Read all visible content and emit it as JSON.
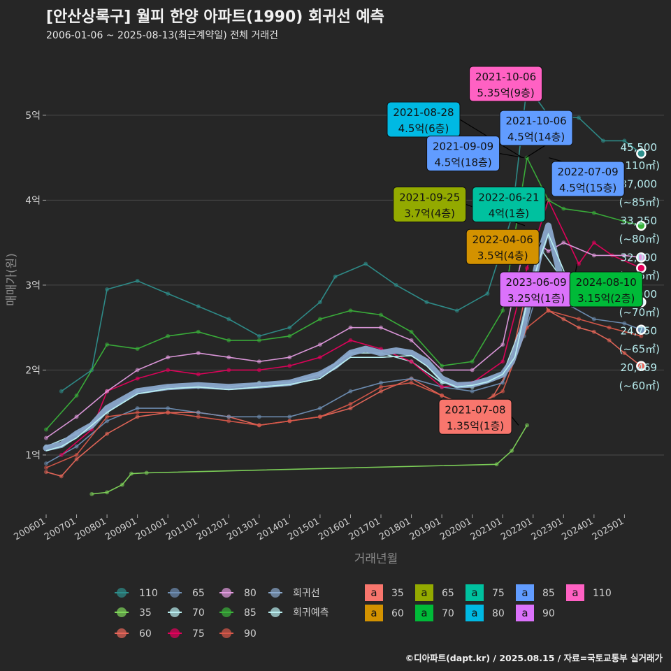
{
  "title": "[안산상록구] 월피 한양 아파트(1990) 회귀선 예측",
  "subtitle": "2006-01-06 ~ 2025-08-13(최근계약일) 전체 거래건",
  "caption": "©디아파트(dapt.kr) / 2025.08.15 / 자료=국토교통부 실거래가",
  "colors": {
    "background": "#262626",
    "grid": "#4a4a4a",
    "110": "#2e8f8c",
    "35": "#7fd65a",
    "60": "#e8675a",
    "65": "#6f8fb5",
    "70": "#b9eef0",
    "75": "#e6005c",
    "80": "#e39be0",
    "85": "#3ab23a",
    "90": "#d8584a",
    "regression": "#8aa8cc",
    "prediction": "#b9eef0"
  },
  "chart_data": {
    "type": "line",
    "xlabel": "거래년월",
    "ylabel": "매매가(원)",
    "x_ticks": [
      "200601",
      "200701",
      "200801",
      "200901",
      "201001",
      "201101",
      "201201",
      "201301",
      "201401",
      "201501",
      "201601",
      "201701",
      "201801",
      "201901",
      "202001",
      "202101",
      "202201",
      "202301",
      "202401",
      "202501"
    ],
    "y_ticks": [
      "1억",
      "2억",
      "3억",
      "4억",
      "5억"
    ],
    "y_tick_values": [
      10000,
      20000,
      30000,
      40000,
      50000
    ],
    "xlim": [
      2006.0,
      2026.3
    ],
    "ylim": [
      3000,
      56000
    ],
    "grid": true,
    "series": [
      {
        "name": "110",
        "x": [
          2006.5,
          2007.5,
          2008.0,
          2009.0,
          2010.0,
          2011.0,
          2012.0,
          2013.0,
          2014.0,
          2015.0,
          2015.5,
          2016.5,
          2017.5,
          2018.5,
          2019.5,
          2020.5,
          2021.3,
          2021.8,
          2022.5,
          2023.5,
          2024.3,
          2025.0,
          2025.55
        ],
        "values": [
          17500,
          20000,
          29500,
          30500,
          29000,
          27500,
          26000,
          24000,
          25000,
          28000,
          31000,
          32500,
          30000,
          28000,
          27000,
          29000,
          38000,
          53500,
          50000,
          49700,
          47000,
          47000,
          45500
        ]
      },
      {
        "name": "35",
        "x": [
          2007.5,
          2008.0,
          2008.5,
          2008.8,
          2009.3,
          2020.8,
          2021.3,
          2021.8
        ],
        "values": [
          5400,
          5600,
          6500,
          7800,
          7900,
          8900,
          10500,
          13500
        ]
      },
      {
        "name": "60",
        "x": [
          2006.0,
          2006.5,
          2007.0,
          2008.0,
          2009.0,
          2010.0,
          2011.0,
          2012.0,
          2013.0,
          2014.0,
          2015.0,
          2016.0,
          2017.0,
          2018.0,
          2019.0,
          2020.0,
          2020.7,
          2021.2,
          2021.7,
          2022.2,
          2022.5,
          2023.0,
          2023.5,
          2024.0,
          2024.5,
          2025.0,
          2025.55
        ],
        "values": [
          8000,
          7500,
          9500,
          12500,
          14500,
          15000,
          15000,
          14500,
          13500,
          14000,
          14500,
          15500,
          17500,
          19000,
          17000,
          15500,
          17000,
          20000,
          28000,
          29000,
          27000,
          26000,
          25000,
          24500,
          23500,
          22000,
          20469
        ]
      },
      {
        "name": "65",
        "x": [
          2006.0,
          2007.0,
          2008.0,
          2009.0,
          2010.0,
          2011.0,
          2012.0,
          2013.0,
          2014.0,
          2015.0,
          2016.0,
          2017.0,
          2018.0,
          2019.0,
          2020.0,
          2021.0,
          2021.7,
          2022.3,
          2023.0,
          2024.0,
          2025.0,
          2025.55
        ],
        "values": [
          9000,
          11000,
          14000,
          15500,
          15500,
          15000,
          14500,
          14500,
          14500,
          15500,
          17500,
          18500,
          19000,
          18000,
          17500,
          18500,
          24000,
          31000,
          28000,
          26000,
          25500,
          24750
        ]
      },
      {
        "name": "70",
        "x": [
          2006.0,
          2007.0,
          2008.0,
          2009.0,
          2010.0,
          2011.0,
          2012.0,
          2013.0,
          2014.0,
          2015.0,
          2016.0,
          2017.0,
          2018.0,
          2019.0,
          2020.0,
          2021.0,
          2021.7,
          2022.3,
          2023.0,
          2024.0,
          2025.0,
          2025.55
        ],
        "values": [
          11000,
          12500,
          15000,
          17500,
          18000,
          18000,
          18000,
          18500,
          18500,
          19500,
          22000,
          22000,
          21000,
          18500,
          18000,
          19500,
          26000,
          34000,
          30500,
          29000,
          28500,
          28000
        ]
      },
      {
        "name": "75",
        "x": [
          2006.5,
          2007.5,
          2008.0,
          2009.0,
          2010.0,
          2011.0,
          2012.0,
          2013.0,
          2014.0,
          2015.0,
          2016.0,
          2017.0,
          2018.0,
          2019.0,
          2020.0,
          2021.0,
          2021.8,
          2022.5,
          2023.5,
          2024.0,
          2024.6,
          2025.55
        ],
        "values": [
          10000,
          13000,
          17500,
          19000,
          20000,
          19500,
          20000,
          20000,
          20500,
          21500,
          23500,
          22500,
          21000,
          18000,
          18500,
          21000,
          32000,
          40000,
          32500,
          35000,
          33500,
          32000
        ]
      },
      {
        "name": "80",
        "x": [
          2006.0,
          2007.0,
          2008.0,
          2009.0,
          2010.0,
          2011.0,
          2012.0,
          2013.0,
          2014.0,
          2015.0,
          2016.0,
          2017.0,
          2018.0,
          2019.0,
          2020.0,
          2021.0,
          2021.8,
          2022.5,
          2023.0,
          2024.0,
          2025.0,
          2025.55
        ],
        "values": [
          12000,
          14500,
          17500,
          20000,
          21500,
          22000,
          21500,
          21000,
          21500,
          23000,
          25000,
          25000,
          23500,
          20000,
          20000,
          23000,
          36000,
          34000,
          35000,
          33500,
          33500,
          33250
        ]
      },
      {
        "name": "85",
        "x": [
          2006.0,
          2007.0,
          2008.0,
          2009.0,
          2010.0,
          2011.0,
          2012.0,
          2013.0,
          2014.0,
          2015.0,
          2016.0,
          2017.0,
          2018.0,
          2019.0,
          2020.0,
          2021.0,
          2021.8,
          2022.5,
          2023.0,
          2024.0,
          2025.0,
          2025.55
        ],
        "values": [
          13000,
          17000,
          23000,
          22500,
          24000,
          24500,
          23500,
          23500,
          24000,
          26000,
          27000,
          26500,
          24500,
          20500,
          21000,
          27000,
          45000,
          40000,
          39000,
          38500,
          37500,
          37000
        ]
      },
      {
        "name": "90",
        "x": [
          2006.0,
          2007.0,
          2008.0,
          2009.0,
          2010.0,
          2011.0,
          2012.0,
          2013.0,
          2014.0,
          2015.0,
          2016.0,
          2017.0,
          2018.0,
          2019.0,
          2020.0,
          2021.0,
          2021.8,
          2022.5,
          2023.5,
          2024.5,
          2025.55
        ],
        "values": [
          8500,
          10000,
          14500,
          15000,
          15000,
          14500,
          14000,
          13500,
          14000,
          14500,
          16000,
          18000,
          18500,
          17000,
          15500,
          17500,
          25000,
          27000,
          26000,
          25000,
          24000
        ]
      },
      {
        "name": "회귀선",
        "x": [
          2006.0,
          2006.5,
          2007.0,
          2007.5,
          2008.0,
          2009.0,
          2010.0,
          2011.0,
          2012.0,
          2013.0,
          2014.0,
          2015.0,
          2015.5,
          2016.0,
          2016.5,
          2017.0,
          2017.5,
          2018.0,
          2018.5,
          2019.0,
          2019.5,
          2020.0,
          2020.5,
          2021.0,
          2021.3,
          2021.6,
          2021.9,
          2022.2,
          2022.5,
          2022.7,
          2022.9,
          2023.2,
          2023.6,
          2024.0,
          2024.5
        ],
        "values": [
          10800,
          11200,
          12500,
          13500,
          15500,
          17500,
          18000,
          18200,
          18000,
          18200,
          18500,
          19500,
          20500,
          22000,
          22500,
          22000,
          22300,
          22000,
          21000,
          19000,
          18200,
          18300,
          18800,
          19500,
          21000,
          24000,
          28500,
          33500,
          37000,
          34000,
          31000,
          29500,
          28500,
          28200,
          28000
        ]
      },
      {
        "name": "회귀예측",
        "x": [
          2006.0,
          2006.5,
          2007.0,
          2008.0,
          2009.0,
          2010.0,
          2011.0,
          2012.0,
          2013.0,
          2014.0,
          2015.0,
          2016.0,
          2017.0,
          2018.0,
          2018.5,
          2019.0,
          2019.5,
          2020.0,
          2020.5,
          2021.0,
          2021.4,
          2021.8,
          2022.2,
          2022.5,
          2022.8,
          2023.2,
          2023.6,
          2024.0,
          2024.5
        ],
        "values": [
          10500,
          11000,
          12000,
          15000,
          17200,
          17800,
          18000,
          17700,
          18000,
          18300,
          19000,
          21500,
          21500,
          21700,
          20500,
          18700,
          18000,
          18200,
          18600,
          19500,
          21500,
          28000,
          33000,
          36000,
          33500,
          30000,
          28500,
          28200,
          28000
        ]
      }
    ],
    "end_labels": [
      {
        "value": "45,500",
        "area": "(~110㎡)",
        "y": 45500,
        "series": "110"
      },
      {
        "value": "37,000",
        "area": "(~85㎡)",
        "y": 37000,
        "series": "85"
      },
      {
        "value": "33,250",
        "area": "(~80㎡)",
        "y": 33250,
        "series": "80"
      },
      {
        "value": "32,000",
        "area": "(~75㎡)",
        "y": 32000,
        "series": "75"
      },
      {
        "value": "28,000",
        "area": "(~70㎡)",
        "y": 28000,
        "series": "70"
      },
      {
        "value": "24,750",
        "area": "(~65㎡)",
        "y": 24750,
        "series": "65"
      },
      {
        "value": "20,469",
        "area": "(~60㎡)",
        "y": 20469,
        "series": "60"
      }
    ],
    "annotations": [
      {
        "date": "2021-10-06",
        "price": "5.35억(9층)",
        "color": "110",
        "bx": 2021.76,
        "by": 53500,
        "lx": 2021.1,
        "ly": 53700
      },
      {
        "date": "2021-08-28",
        "price": "4.5억(6층)",
        "color": "80",
        "bx": 2021.65,
        "by": 45000,
        "lx": 2018.4,
        "ly": 49500
      },
      {
        "date": "2021-10-06",
        "price": "4.5억(14층)",
        "color": "85",
        "bx": 2021.76,
        "by": 45000,
        "lx": 2022.1,
        "ly": 48500
      },
      {
        "date": "2021-09-09",
        "price": "4.5억(18층)",
        "color": "85",
        "bx": 2021.7,
        "by": 45000,
        "lx": 2019.7,
        "ly": 45500
      },
      {
        "date": "2022-07-09",
        "price": "4.5억(15층)",
        "color": "85",
        "bx": 2022.52,
        "by": 45000,
        "lx": 2023.8,
        "ly": 42500
      },
      {
        "date": "2021-09-25",
        "price": "3.7억(4층)",
        "color": "65",
        "bx": 2021.73,
        "by": 37000,
        "lx": 2018.6,
        "ly": 39500
      },
      {
        "date": "2022-06-21",
        "price": "4억(1층)",
        "color": "75",
        "bx": 2022.47,
        "by": 40000,
        "lx": 2021.2,
        "ly": 39500
      },
      {
        "date": "2022-04-06",
        "price": "3.5억(4층)",
        "color": "60",
        "bx": 2022.26,
        "by": 35000,
        "lx": 2021.0,
        "ly": 34500
      },
      {
        "date": "2023-06-09",
        "price": "3.25억(1층)",
        "color": "90",
        "bx": 2023.44,
        "by": 32500,
        "lx": 2022.1,
        "ly": 29500
      },
      {
        "date": "2024-08-10",
        "price": "3.15억(2층)",
        "color": "70",
        "bx": 2024.61,
        "by": 31500,
        "lx": 2024.4,
        "ly": 29500
      },
      {
        "date": "2021-07-08",
        "price": "1.35억(1층)",
        "color": "35",
        "bx": 2021.52,
        "by": 13500,
        "lx": 2020.1,
        "ly": 14500
      }
    ],
    "legend": {
      "position": "bottom",
      "line_items": [
        {
          "label": "110",
          "key": "110"
        },
        {
          "label": "35",
          "key": "35"
        },
        {
          "label": "60",
          "key": "60"
        },
        {
          "label": "65",
          "key": "65"
        },
        {
          "label": "70",
          "key": "70"
        },
        {
          "label": "75",
          "key": "75"
        },
        {
          "label": "80",
          "key": "80"
        },
        {
          "label": "85",
          "key": "85"
        },
        {
          "label": "90",
          "key": "90"
        },
        {
          "label": "회귀선",
          "key": "regression"
        },
        {
          "label": "회귀예측",
          "key": "prediction"
        }
      ],
      "box_glyph": "a",
      "box_items": [
        {
          "label": "35",
          "color": "#f8766d"
        },
        {
          "label": "60",
          "color": "#d39200"
        },
        {
          "label": "65",
          "color": "#93aa00"
        },
        {
          "label": "70",
          "color": "#00ba38"
        },
        {
          "label": "75",
          "color": "#00c19f"
        },
        {
          "label": "80",
          "color": "#00b9e3"
        },
        {
          "label": "85",
          "color": "#619cff"
        },
        {
          "label": "90",
          "color": "#db72fb"
        },
        {
          "label": "110",
          "color": "#ff61c3"
        }
      ]
    }
  }
}
